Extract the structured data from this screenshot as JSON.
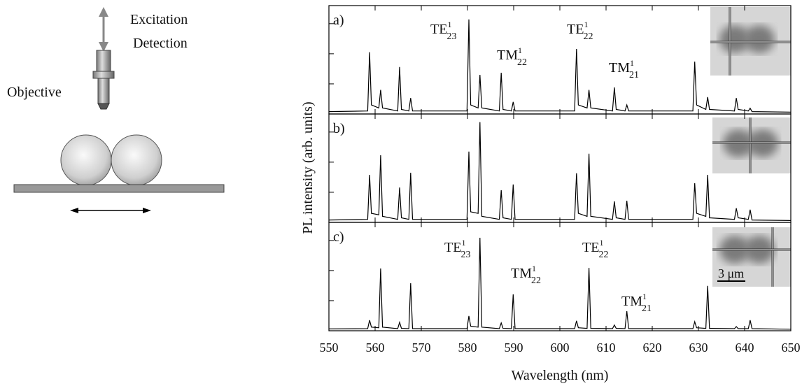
{
  "diagram": {
    "labels": [
      "Excitation",
      "Detection",
      "Objective"
    ]
  },
  "figure": {
    "xlabel": "Wavelength (nm)",
    "ylabel": "PL intensity (arb. units)"
  },
  "chart_data": [
    {
      "type": "line",
      "panel_label": "a)",
      "color": "#000000",
      "xlim": [
        550,
        650
      ],
      "xticks": [
        550,
        560,
        570,
        580,
        590,
        600,
        610,
        620,
        630,
        640,
        650
      ],
      "ylim": [
        0,
        3.6
      ],
      "yticks": [
        1,
        2,
        3
      ],
      "x": [
        550,
        558.4,
        558.8,
        559.2,
        560.8,
        561.2,
        561.6,
        564.9,
        565.3,
        565.7,
        567.3,
        567.7,
        568.1,
        579.9,
        580.3,
        580.7,
        582.3,
        582.7,
        583.1,
        586.9,
        587.3,
        587.7,
        589.5,
        589.9,
        590.3,
        603.2,
        603.6,
        604.0,
        605.9,
        606.3,
        606.7,
        611.4,
        611.8,
        612.2,
        614.1,
        614.5,
        614.9,
        628.8,
        629.2,
        629.6,
        631.6,
        632.0,
        632.4,
        637.8,
        638.2,
        638.6,
        640.8,
        641.2,
        641.6,
        650
      ],
      "values": [
        0.08,
        0.1,
        2.05,
        0.3,
        0.2,
        0.8,
        0.2,
        0.1,
        1.56,
        0.15,
        0.1,
        0.53,
        0.1,
        0.1,
        3.14,
        0.3,
        0.2,
        1.3,
        0.2,
        0.1,
        1.37,
        0.15,
        0.1,
        0.4,
        0.1,
        0.1,
        2.16,
        0.3,
        0.2,
        0.8,
        0.2,
        0.1,
        0.88,
        0.15,
        0.1,
        0.3,
        0.1,
        0.1,
        1.74,
        0.3,
        0.15,
        0.56,
        0.15,
        0.1,
        0.53,
        0.15,
        0.1,
        0.19,
        0.08,
        0.06
      ],
      "annotations": [
        {
          "text": "TE",
          "sup": "1",
          "sub": "23"
        },
        {
          "text": "TM",
          "sup": "1",
          "sub": "22"
        },
        {
          "text": "TE",
          "sup": "1",
          "sub": "22"
        },
        {
          "text": "TM",
          "sup": "1",
          "sub": "21"
        }
      ]
    },
    {
      "type": "line",
      "panel_label": "b)",
      "color": "#000000",
      "xlim": [
        550,
        650
      ],
      "xticks": [
        550,
        560,
        570,
        580,
        590,
        600,
        610,
        620,
        630,
        640,
        650
      ],
      "ylim": [
        0,
        3.6
      ],
      "yticks": [
        1,
        2,
        3
      ],
      "x": [
        550,
        558.4,
        558.8,
        559.2,
        560.8,
        561.2,
        561.6,
        564.9,
        565.3,
        565.7,
        567.3,
        567.7,
        568.1,
        579.9,
        580.3,
        580.7,
        582.3,
        582.7,
        583.1,
        586.9,
        587.3,
        587.7,
        589.5,
        589.9,
        590.3,
        603.2,
        603.6,
        604.0,
        605.9,
        606.3,
        606.7,
        611.4,
        611.8,
        612.2,
        614.1,
        614.5,
        614.9,
        628.8,
        629.2,
        629.6,
        631.6,
        632.0,
        632.4,
        637.8,
        638.2,
        638.6,
        640.8,
        641.2,
        641.6,
        650
      ],
      "values": [
        0.08,
        0.1,
        1.58,
        0.3,
        0.25,
        2.23,
        0.2,
        0.1,
        1.16,
        0.15,
        0.1,
        1.65,
        0.1,
        0.1,
        2.35,
        0.35,
        0.3,
        3.33,
        0.2,
        0.1,
        1.07,
        0.15,
        0.1,
        1.26,
        0.1,
        0.1,
        1.63,
        0.3,
        0.2,
        2.28,
        0.2,
        0.1,
        0.7,
        0.15,
        0.1,
        0.72,
        0.1,
        0.1,
        1.3,
        0.3,
        0.2,
        1.58,
        0.15,
        0.1,
        0.47,
        0.15,
        0.1,
        0.42,
        0.08,
        0.06
      ],
      "annotations": []
    },
    {
      "type": "line",
      "panel_label": "c)",
      "color": "#000000",
      "xlim": [
        550,
        650
      ],
      "xticks": [
        550,
        560,
        570,
        580,
        590,
        600,
        610,
        620,
        630,
        640,
        650
      ],
      "ylim": [
        0,
        3.6
      ],
      "yticks": [
        1,
        2,
        3
      ],
      "x": [
        550,
        558.4,
        558.8,
        559.2,
        560.8,
        561.2,
        561.6,
        564.9,
        565.3,
        565.7,
        567.3,
        567.7,
        568.1,
        579.9,
        580.3,
        580.7,
        582.3,
        582.7,
        583.1,
        586.9,
        587.3,
        587.7,
        589.5,
        589.9,
        590.3,
        603.2,
        603.6,
        604.0,
        605.9,
        606.3,
        606.7,
        611.4,
        611.8,
        612.2,
        614.1,
        614.5,
        614.9,
        628.8,
        629.2,
        629.6,
        631.6,
        632.0,
        632.4,
        637.8,
        638.2,
        638.6,
        640.8,
        641.2,
        641.6,
        650
      ],
      "values": [
        0.06,
        0.07,
        0.35,
        0.12,
        0.1,
        2.07,
        0.12,
        0.07,
        0.28,
        0.08,
        0.07,
        1.58,
        0.07,
        0.07,
        0.49,
        0.15,
        0.12,
        3.09,
        0.12,
        0.07,
        0.26,
        0.08,
        0.07,
        1.21,
        0.07,
        0.07,
        0.33,
        0.1,
        0.08,
        2.09,
        0.08,
        0.07,
        0.19,
        0.08,
        0.07,
        0.65,
        0.07,
        0.07,
        0.3,
        0.1,
        0.08,
        1.49,
        0.08,
        0.07,
        0.14,
        0.07,
        0.07,
        0.35,
        0.07,
        0.05
      ],
      "annotations": [
        {
          "text": "TE",
          "sup": "1",
          "sub": "23"
        },
        {
          "text": "TM",
          "sup": "1",
          "sub": "22"
        },
        {
          "text": "TE",
          "sup": "1",
          "sub": "22"
        },
        {
          "text": "TM",
          "sup": "1",
          "sub": "21"
        }
      ],
      "scale_bar": "3 μm"
    }
  ]
}
